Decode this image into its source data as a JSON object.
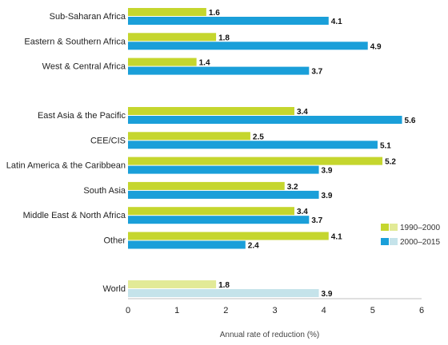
{
  "chart_data": {
    "type": "bar",
    "orientation": "horizontal",
    "title": "",
    "xlabel": "Annual rate of reduction (%)",
    "ylabel": "",
    "xlim": [
      0,
      6
    ],
    "x_ticks": [
      "0",
      "1",
      "2",
      "3",
      "4",
      "5",
      "6"
    ],
    "grid": false,
    "legend_placement": "right",
    "groups": [
      {
        "categories": [
          "Sub-Saharan Africa",
          "Eastern & Southern Africa",
          "West & Central Africa"
        ]
      },
      {
        "categories": [
          "East Asia & the Pacific",
          "CEE/CIS",
          "Latin America & the Caribbean",
          "South Asia",
          "Middle East & North Africa",
          "Other"
        ]
      },
      {
        "categories": [
          "World"
        ]
      }
    ],
    "categories": [
      "Sub-Saharan Africa",
      "Eastern & Southern Africa",
      "West & Central Africa",
      "East Asia & the Pacific",
      "CEE/CIS",
      "Latin America & the Caribbean",
      "South Asia",
      "Middle East & North Africa",
      "Other",
      "World"
    ],
    "series": [
      {
        "name": "1990–2000",
        "color": "#c5d62e",
        "world_color": "#e2ea97",
        "values": [
          1.6,
          1.8,
          1.4,
          3.4,
          2.5,
          5.2,
          3.2,
          3.4,
          4.1,
          1.8
        ],
        "value_labels": [
          "1.6",
          "1.8",
          "1.4",
          "3.4",
          "2.5",
          "5.2",
          "3.2",
          "3.4",
          "4.1",
          "1.8"
        ]
      },
      {
        "name": "2000–2015",
        "color": "#1a9fd9",
        "world_color": "#c5e3ea",
        "values": [
          4.1,
          4.9,
          3.7,
          5.6,
          5.1,
          3.9,
          3.9,
          3.7,
          2.4,
          3.9
        ],
        "value_labels": [
          "4.1",
          "4.9",
          "3.7",
          "5.6",
          "5.1",
          "3.9",
          "3.9",
          "3.7",
          "2.4",
          "3.9"
        ]
      }
    ]
  }
}
